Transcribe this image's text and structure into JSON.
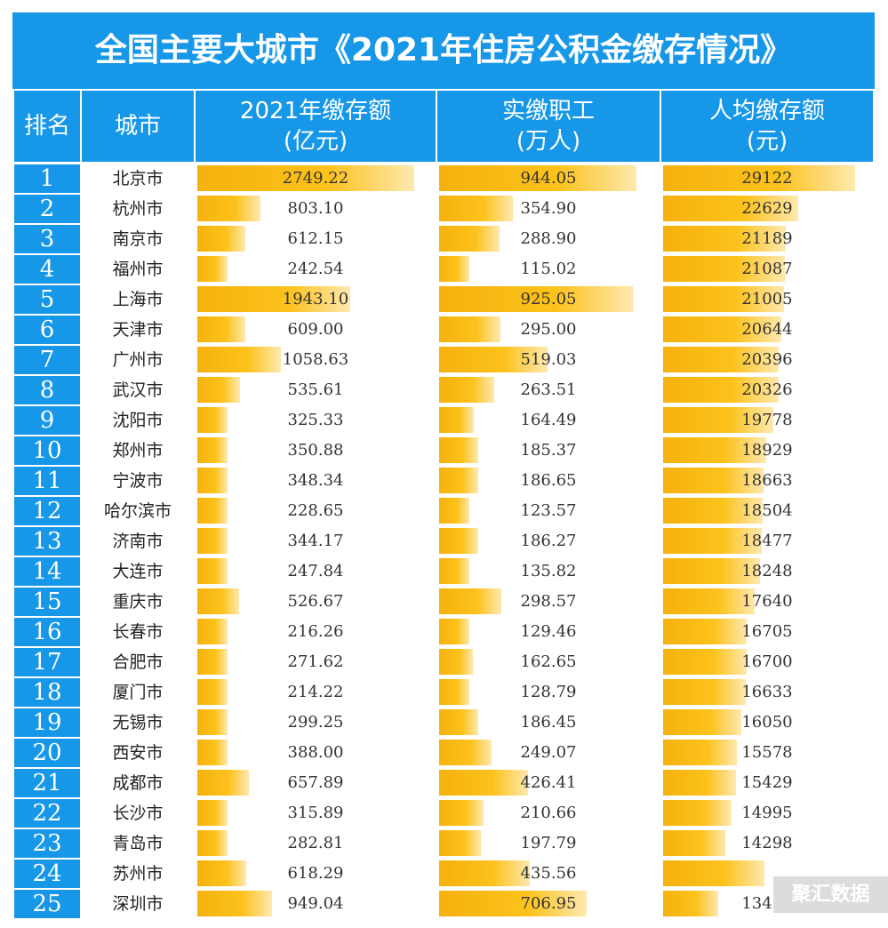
{
  "title": "全国主要大城市《2021年住房公积金缴存情况》",
  "headers": {
    "rank": "排名",
    "city": "城市",
    "deposit": [
      "2021年缴存额",
      "(亿元)"
    ],
    "workers": [
      "实缴职工",
      "(万人)"
    ],
    "per_capita": [
      "人均缴存额",
      "(元)"
    ]
  },
  "watermark": "聚汇数据",
  "colors": {
    "header_blue": "#1797e8",
    "bar_gold": "#fcc21b"
  },
  "chart_data": {
    "type": "table",
    "title": "全国主要大城市《2021年住房公积金缴存情况》",
    "columns": [
      "排名",
      "城市",
      "2021年缴存额(亿元)",
      "实缴职工(万人)",
      "人均缴存额(元)"
    ],
    "rows": [
      {
        "rank": "1",
        "city": "北京市",
        "deposit": "2749.22",
        "workers": "944.05",
        "per_capita": "29122"
      },
      {
        "rank": "2",
        "city": "杭州市",
        "deposit": "803.10",
        "workers": "354.90",
        "per_capita": "22629"
      },
      {
        "rank": "3",
        "city": "南京市",
        "deposit": "612.15",
        "workers": "288.90",
        "per_capita": "21189"
      },
      {
        "rank": "4",
        "city": "福州市",
        "deposit": "242.54",
        "workers": "115.02",
        "per_capita": "21087"
      },
      {
        "rank": "5",
        "city": "上海市",
        "deposit": "1943.10",
        "workers": "925.05",
        "per_capita": "21005"
      },
      {
        "rank": "6",
        "city": "天津市",
        "deposit": "609.00",
        "workers": "295.00",
        "per_capita": "20644"
      },
      {
        "rank": "7",
        "city": "广州市",
        "deposit": "1058.63",
        "workers": "519.03",
        "per_capita": "20396"
      },
      {
        "rank": "8",
        "city": "武汉市",
        "deposit": "535.61",
        "workers": "263.51",
        "per_capita": "20326"
      },
      {
        "rank": "9",
        "city": "沈阳市",
        "deposit": "325.33",
        "workers": "164.49",
        "per_capita": "19778"
      },
      {
        "rank": "10",
        "city": "郑州市",
        "deposit": "350.88",
        "workers": "185.37",
        "per_capita": "18929"
      },
      {
        "rank": "11",
        "city": "宁波市",
        "deposit": "348.34",
        "workers": "186.65",
        "per_capita": "18663"
      },
      {
        "rank": "12",
        "city": "哈尔滨市",
        "deposit": "228.65",
        "workers": "123.57",
        "per_capita": "18504"
      },
      {
        "rank": "13",
        "city": "济南市",
        "deposit": "344.17",
        "workers": "186.27",
        "per_capita": "18477"
      },
      {
        "rank": "14",
        "city": "大连市",
        "deposit": "247.84",
        "workers": "135.82",
        "per_capita": "18248"
      },
      {
        "rank": "15",
        "city": "重庆市",
        "deposit": "526.67",
        "workers": "298.57",
        "per_capita": "17640"
      },
      {
        "rank": "16",
        "city": "长春市",
        "deposit": "216.26",
        "workers": "129.46",
        "per_capita": "16705"
      },
      {
        "rank": "17",
        "city": "合肥市",
        "deposit": "271.62",
        "workers": "162.65",
        "per_capita": "16700"
      },
      {
        "rank": "18",
        "city": "厦门市",
        "deposit": "214.22",
        "workers": "128.79",
        "per_capita": "16633"
      },
      {
        "rank": "19",
        "city": "无锡市",
        "deposit": "299.25",
        "workers": "186.45",
        "per_capita": "16050"
      },
      {
        "rank": "20",
        "city": "西安市",
        "deposit": "388.00",
        "workers": "249.07",
        "per_capita": "15578"
      },
      {
        "rank": "21",
        "city": "成都市",
        "deposit": "657.89",
        "workers": "426.41",
        "per_capita": "15429"
      },
      {
        "rank": "22",
        "city": "长沙市",
        "deposit": "315.89",
        "workers": "210.66",
        "per_capita": "14995"
      },
      {
        "rank": "23",
        "city": "青岛市",
        "deposit": "282.81",
        "workers": "197.79",
        "per_capita": "14298"
      },
      {
        "rank": "24",
        "city": "苏州市",
        "deposit": "618.29",
        "workers": "435.56",
        "per_capita": ""
      },
      {
        "rank": "25",
        "city": "深圳市",
        "deposit": "949.04",
        "workers": "706.95",
        "per_capita": "13424"
      }
    ]
  }
}
